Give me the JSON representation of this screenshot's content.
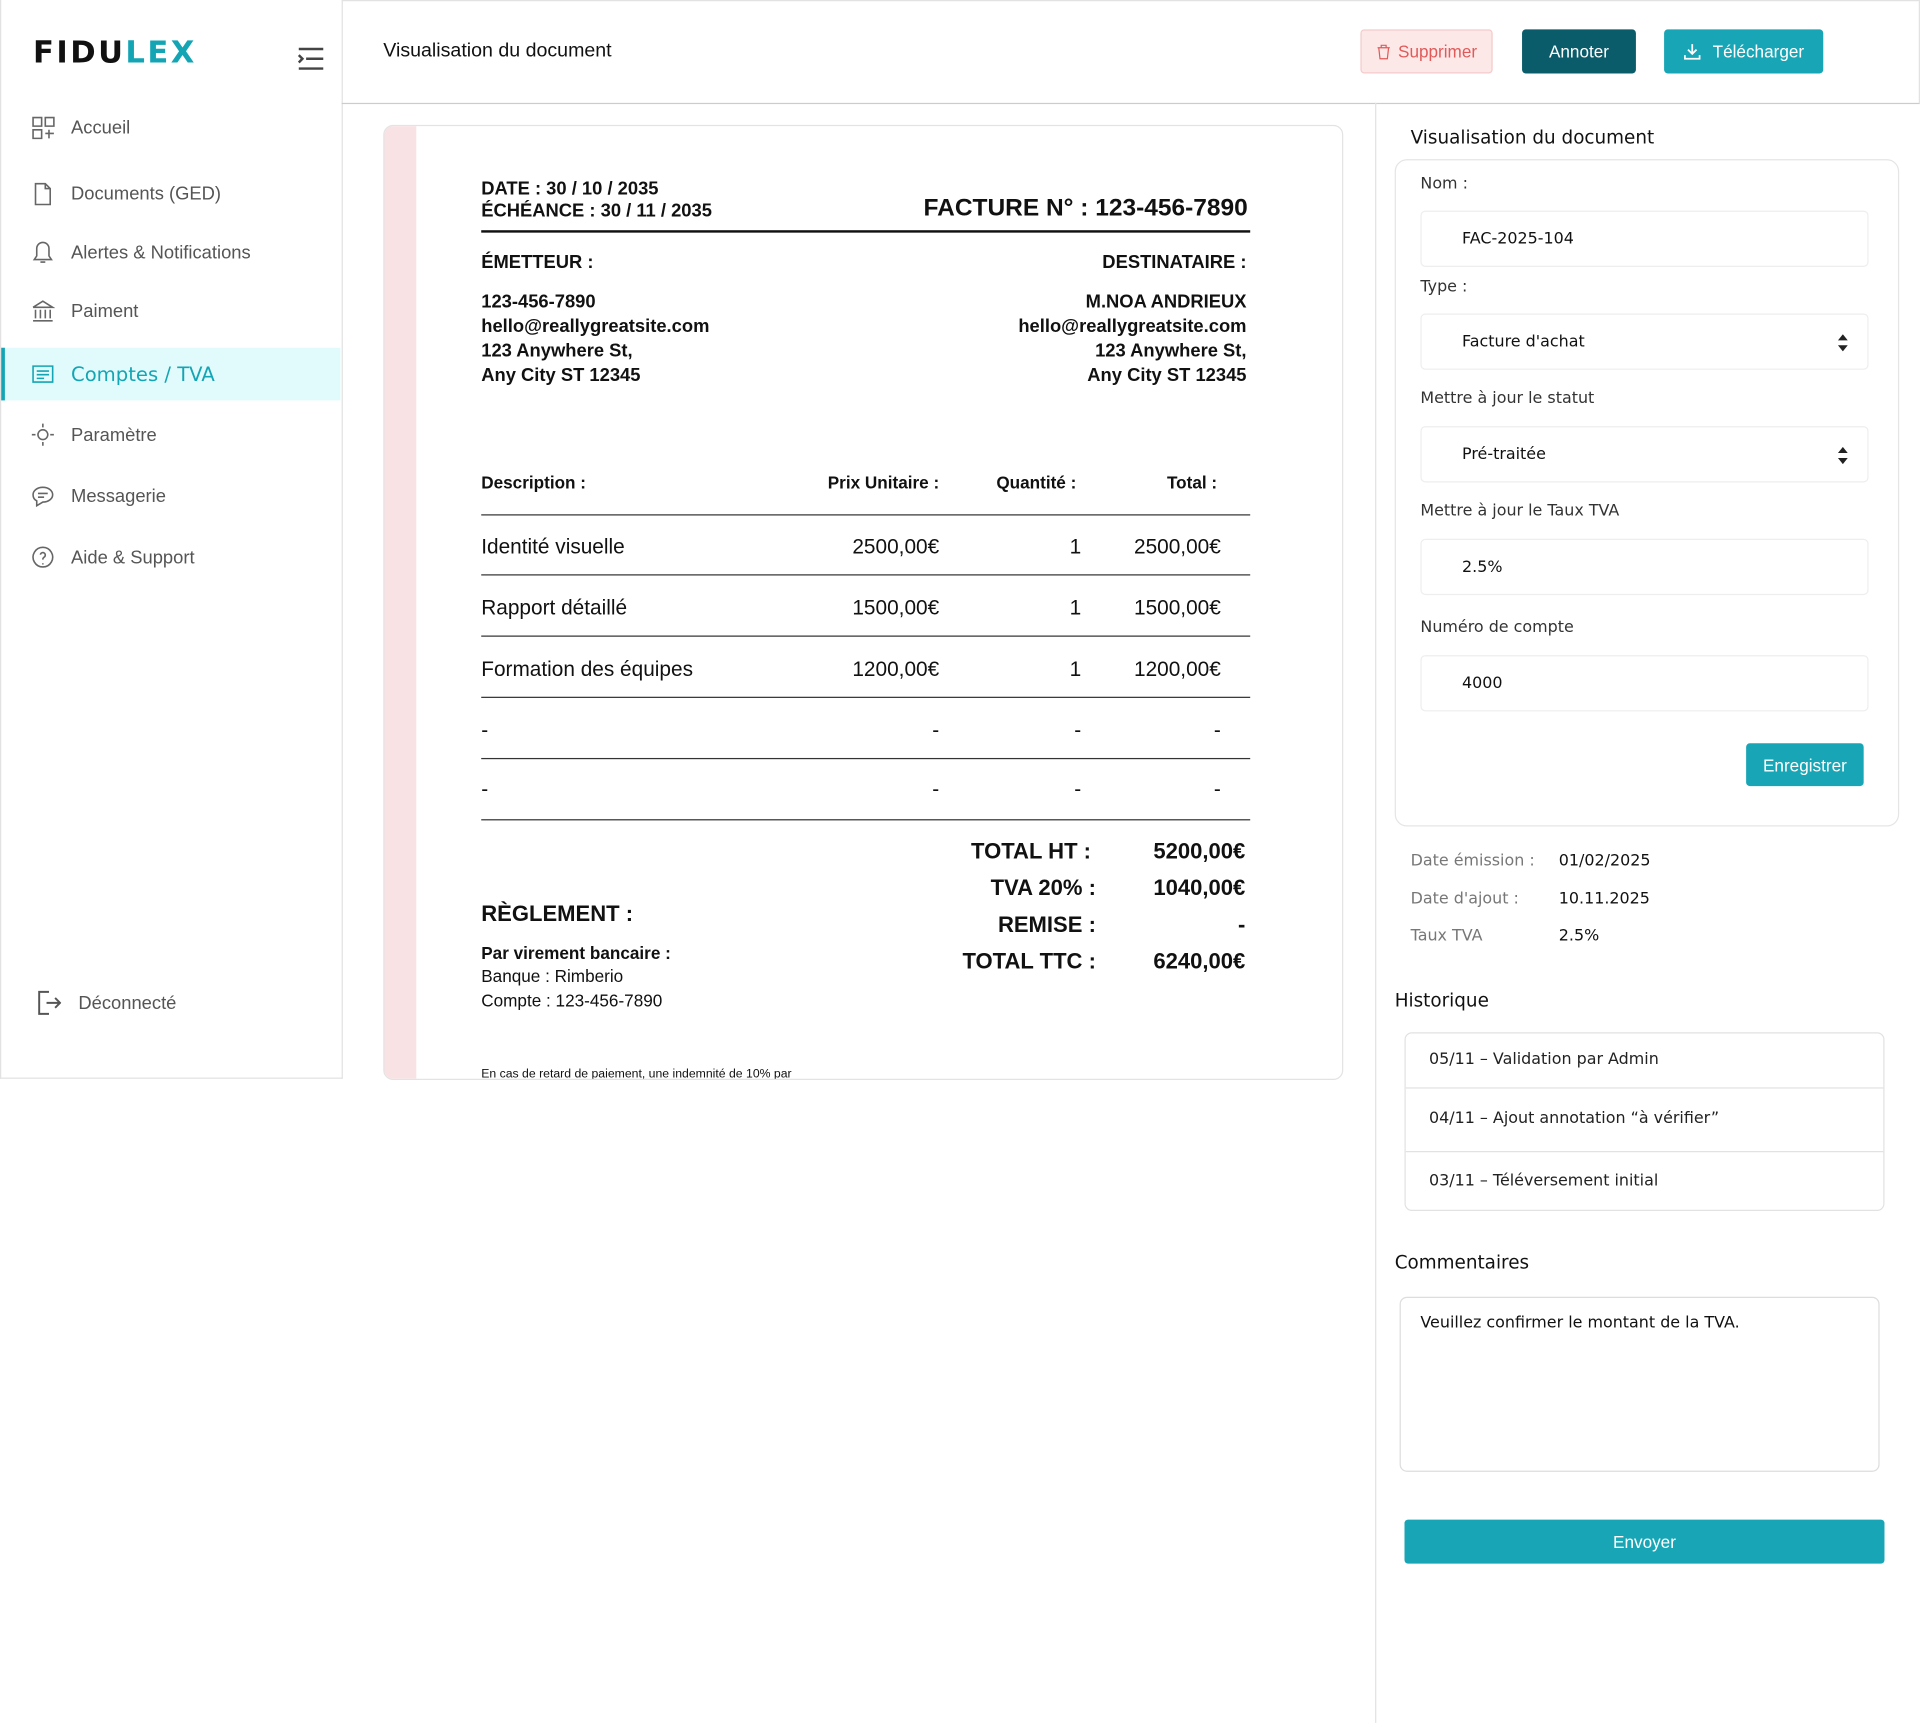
{
  "sidebar": {
    "logo": {
      "dark": "FIDU",
      "accent": "LEX"
    },
    "nav": [
      "Accueil",
      "Documents (GED)",
      "Alertes & Notifications",
      "Paiment",
      "Comptes / TVA",
      "Paramètre",
      "Messagerie",
      "Aide & Support"
    ],
    "logout": "Déconnecté"
  },
  "header": {
    "title": "Visualisation du document",
    "actions": [
      "Supprimer",
      "Annoter",
      "Télécharger"
    ]
  },
  "invoice": {
    "date": "DATE : 30 / 10 / 2035",
    "due": "ÉCHÉANCE : 30 / 11 / 2035",
    "number": "FACTURE N° : 123-456-7890",
    "issuer": {
      "heading": "ÉMETTEUR :",
      "lines": [
        "123-456-7890",
        "hello@reallygreatsite.com",
        "123 Anywhere St,",
        "Any City ST 12345"
      ]
    },
    "recipient": {
      "heading": "DESTINATAIRE :",
      "lines": [
        "M.NOA ANDRIEUX",
        "hello@reallygreatsite.com",
        "123 Anywhere St,",
        "Any City ST 12345"
      ]
    },
    "table": {
      "headers": [
        "Description :",
        "Prix Unitaire :",
        "Quantité :",
        "Total :"
      ],
      "rows": [
        [
          "Identité visuelle",
          "2500,00€",
          "1",
          "2500,00€"
        ],
        [
          "Rapport détaillé",
          "1500,00€",
          "1",
          "1500,00€"
        ],
        [
          "Formation des équipes",
          "1200,00€",
          "1",
          "1200,00€"
        ],
        [
          "-",
          "-",
          "-",
          "-"
        ],
        [
          "-",
          "-",
          "-",
          "-"
        ]
      ]
    },
    "totals": [
      [
        "TOTAL HT :",
        "5200,00€"
      ],
      [
        "TVA 20% :",
        "1040,00€"
      ],
      [
        "REMISE :",
        "-"
      ],
      [
        "TOTAL TTC :",
        "6240,00€"
      ]
    ],
    "payment": {
      "heading": "RÈGLEMENT  :",
      "method": "Par virement bancaire :",
      "bank": "Banque : Rimberio",
      "account": "Compte : 123-456-7890"
    },
    "footer": "En cas de retard de paiement, une indemnité de 10% par"
  },
  "panel": {
    "title": "Visualisation du document",
    "fields": [
      {
        "label": "Nom :",
        "value": "FAC-2025-104"
      },
      {
        "label": "Type :",
        "value": "Facture d'achat"
      },
      {
        "label": "Mettre à jour le statut",
        "value": "Pré-traitée"
      },
      {
        "label": "Mettre à jour le Taux TVA",
        "value": "2.5%"
      },
      {
        "label": "Numéro de compte",
        "value": "4000"
      }
    ],
    "save": "Enregistrer",
    "meta": [
      [
        "Date émission :",
        "01/02/2025"
      ],
      [
        "Date d'ajout :",
        "10.11.2025"
      ],
      [
        "Taux TVA",
        "2.5%"
      ]
    ],
    "history_title": "Historique",
    "history": [
      "05/11 – Validation par Admin",
      "04/11 – Ajout annotation “à vérifier”",
      "03/11 – Téléversement initial"
    ],
    "comments_title": "Commentaires",
    "comment": "Veuillez confirmer le montant de la TVA.",
    "send": "Envoyer"
  }
}
